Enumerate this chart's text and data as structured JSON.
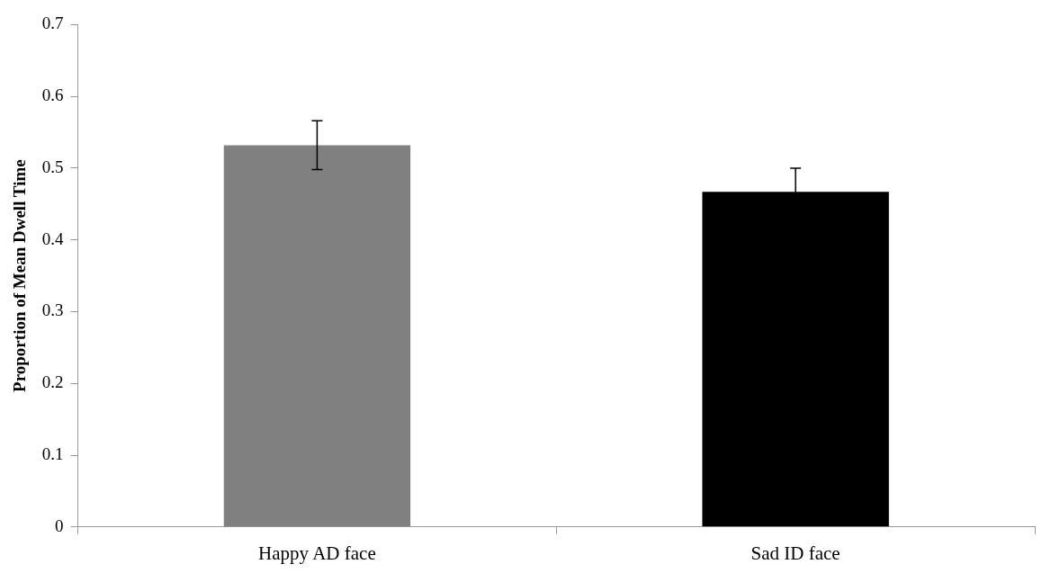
{
  "chart_data": {
    "type": "bar",
    "ylabel": "Proportion of Mean Dwell Time",
    "categories": [
      "Happy AD face",
      "Sad ID face"
    ],
    "values": [
      0.532,
      0.467
    ],
    "errors": [
      0.034,
      0.033
    ],
    "colors": [
      "#808080",
      "#000000"
    ],
    "ylim": [
      0,
      0.7
    ],
    "yticks": [
      0,
      0.1,
      0.2,
      0.3,
      0.4,
      0.5,
      0.6,
      0.7
    ],
    "legend": false
  }
}
